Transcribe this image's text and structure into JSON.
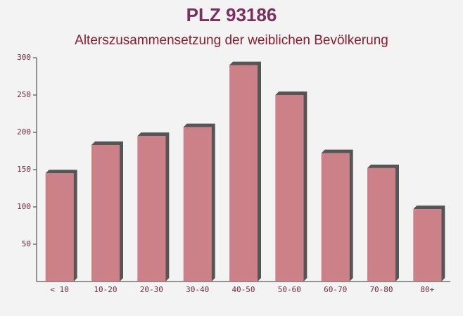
{
  "chart_data": {
    "type": "bar",
    "title": "PLZ 93186",
    "subtitle": "Alterszusammensetzung der weiblichen Bevölkerung",
    "categories": [
      "< 10",
      "10-20",
      "20-30",
      "30-40",
      "40-50",
      "50-60",
      "60-70",
      "70-80",
      "80+"
    ],
    "values": [
      145,
      183,
      195,
      207,
      290,
      250,
      172,
      152,
      97
    ],
    "color": "#c0646c",
    "ylim": [
      0,
      300
    ],
    "yticks": [
      50,
      100,
      150,
      200,
      250,
      300
    ]
  }
}
